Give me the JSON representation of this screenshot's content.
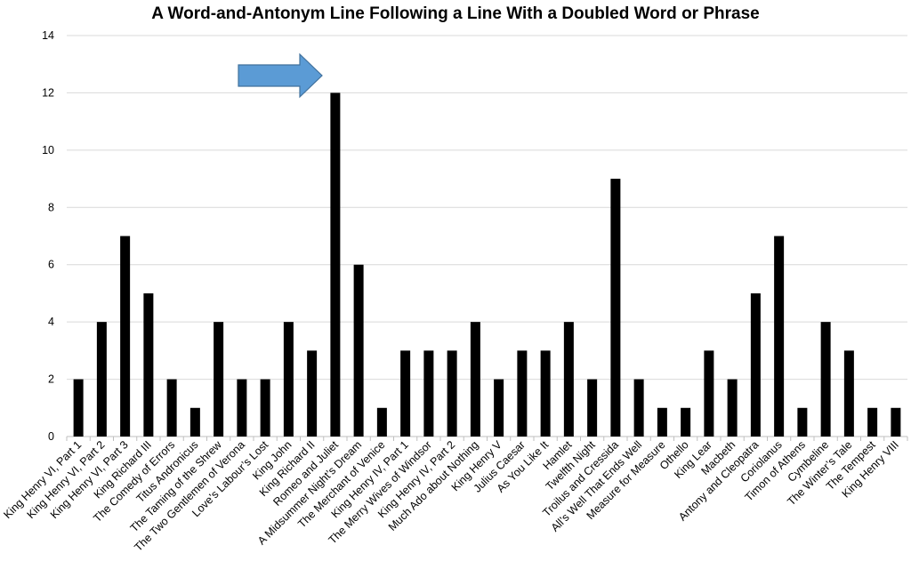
{
  "chart_data": {
    "type": "bar",
    "title": "A Word-and-Antonym Line Following a Line With a Doubled Word or Phrase",
    "xlabel": "",
    "ylabel": "",
    "ylim": [
      0,
      14
    ],
    "yticks": [
      0,
      2,
      4,
      6,
      8,
      10,
      12,
      14
    ],
    "grid": true,
    "legend": "none",
    "bar_color": "#000000",
    "grid_color": "#d9d9d9",
    "annotation": {
      "type": "arrow",
      "points_to": "Romeo and Juliet",
      "color": "#5b9bd5"
    },
    "categories": [
      "King Henry VI, Part 1",
      "King Henry VI, Part 2",
      "King Henry VI, Part 3",
      "King Richard III",
      "The Comedy of Errors",
      "Titus Andronicus",
      "The Taming of the Shrew",
      "The Two Gentlemen of Verona",
      "Love’s Labour’s Lost",
      "King John",
      "King Richard II",
      "Romeo and Juliet",
      "A Midsummer Night’s Dream",
      "The Merchant of Venice",
      "King Henry IV, Part 1",
      "The Merry Wives of Windsor",
      "King Henry IV, Part 2",
      "Much Ado about Nothing",
      "King Henry V",
      "Julius Caesar",
      "As You Like It",
      "Hamlet",
      "Twelfth Night",
      "Troilus and Cressida",
      "All’s Well That Ends Well",
      "Measure for Measure",
      "Othello",
      "King Lear",
      "Macbeth",
      "Antony and Cleopatra",
      "Coriolanus",
      "Timon of Athens",
      "Cymbeline",
      "The Winter’s Tale",
      "The Tempest",
      "King Henry VIII"
    ],
    "values": [
      2,
      4,
      7,
      5,
      2,
      1,
      4,
      2,
      2,
      4,
      3,
      12,
      6,
      1,
      3,
      3,
      3,
      4,
      2,
      3,
      3,
      4,
      2,
      9,
      2,
      1,
      1,
      3,
      2,
      5,
      7,
      1,
      4,
      3,
      1,
      1
    ]
  }
}
